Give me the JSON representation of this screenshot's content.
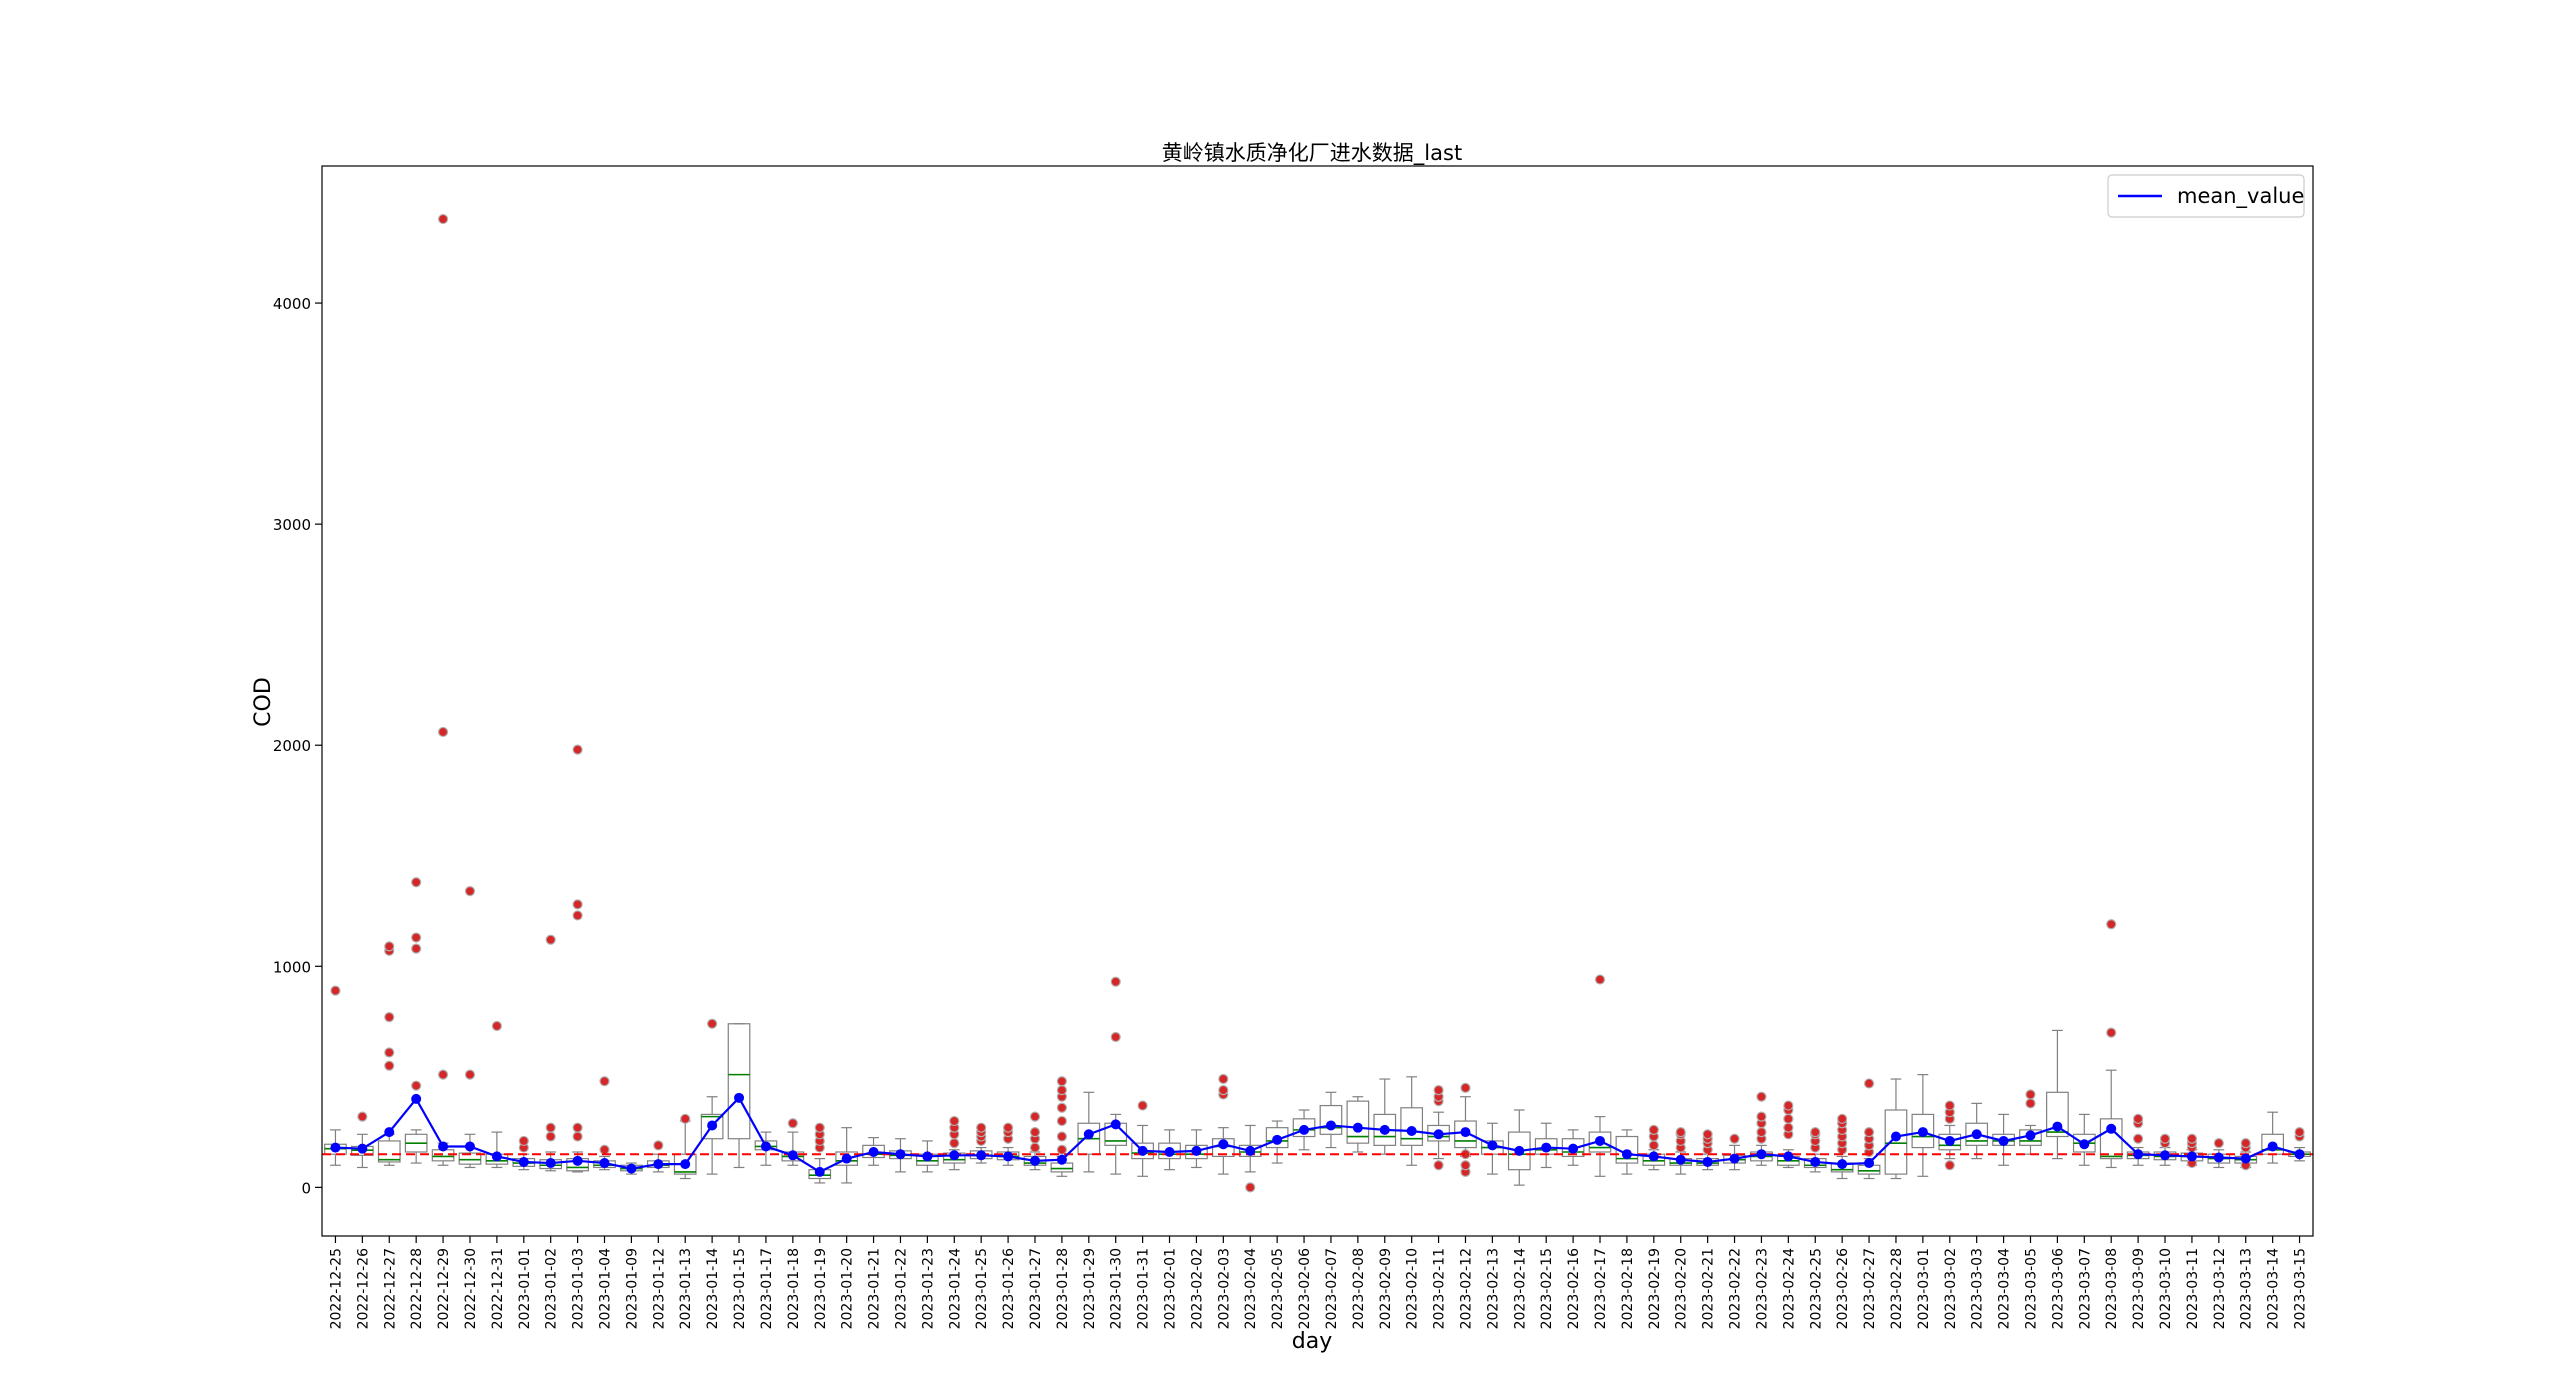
{
  "chart_data": {
    "type": "box",
    "title": "黄岭镇水质净化厂进水数据_last",
    "xlabel": "day",
    "ylabel": "COD",
    "ylim": [
      -220,
      4620
    ],
    "yticks": [
      0,
      1000,
      2000,
      3000,
      4000
    ],
    "reference_line": 150,
    "legend": {
      "placement": "top-right",
      "entries": [
        "mean_value"
      ]
    },
    "colors": {
      "mean": "#0000ff",
      "median": "#008000",
      "outlier": "#d62728",
      "box": "#808080",
      "reference": "#ff0000"
    },
    "categories": [
      "2022-12-25",
      "2022-12-26",
      "2022-12-27",
      "2022-12-28",
      "2022-12-29",
      "2022-12-30",
      "2022-12-31",
      "2023-01-01",
      "2023-01-02",
      "2023-01-03",
      "2023-01-04",
      "2023-01-09",
      "2023-01-12",
      "2023-01-13",
      "2023-01-14",
      "2023-01-15",
      "2023-01-17",
      "2023-01-18",
      "2023-01-19",
      "2023-01-20",
      "2023-01-21",
      "2023-01-22",
      "2023-01-23",
      "2023-01-24",
      "2023-01-25",
      "2023-01-26",
      "2023-01-27",
      "2023-01-28",
      "2023-01-29",
      "2023-01-30",
      "2023-01-31",
      "2023-02-01",
      "2023-02-02",
      "2023-02-03",
      "2023-02-04",
      "2023-02-05",
      "2023-02-06",
      "2023-02-07",
      "2023-02-08",
      "2023-02-09",
      "2023-02-10",
      "2023-02-11",
      "2023-02-12",
      "2023-02-13",
      "2023-02-14",
      "2023-02-15",
      "2023-02-16",
      "2023-02-17",
      "2023-02-18",
      "2023-02-19",
      "2023-02-20",
      "2023-02-21",
      "2023-02-22",
      "2023-02-23",
      "2023-02-24",
      "2023-02-25",
      "2023-02-26",
      "2023-02-27",
      "2023-02-28",
      "2023-03-01",
      "2023-03-02",
      "2023-03-03",
      "2023-03-04",
      "2023-03-05",
      "2023-03-06",
      "2023-03-07",
      "2023-03-08",
      "2023-03-09",
      "2023-03-10",
      "2023-03-11",
      "2023-03-12",
      "2023-03-13",
      "2023-03-14",
      "2023-03-15"
    ],
    "boxes": [
      {
        "q1": 150,
        "med": 175,
        "q3": 195,
        "wlo": 100,
        "whi": 260,
        "out": [
          890
        ]
      },
      {
        "q1": 145,
        "med": 168,
        "q3": 185,
        "wlo": 90,
        "whi": 240,
        "out": [
          320
        ]
      },
      {
        "q1": 115,
        "med": 125,
        "q3": 210,
        "wlo": 100,
        "whi": 240,
        "out": [
          550,
          610,
          770,
          1070,
          1090
        ]
      },
      {
        "q1": 160,
        "med": 200,
        "q3": 240,
        "wlo": 110,
        "whi": 260,
        "out": [
          460,
          1080,
          1130,
          1380
        ]
      },
      {
        "q1": 120,
        "med": 140,
        "q3": 170,
        "wlo": 100,
        "whi": 200,
        "out": [
          510,
          2060,
          4380
        ]
      },
      {
        "q1": 105,
        "med": 125,
        "q3": 155,
        "wlo": 90,
        "whi": 240,
        "out": [
          510,
          1340
        ]
      },
      {
        "q1": 105,
        "med": 120,
        "q3": 150,
        "wlo": 90,
        "whi": 250,
        "out": [
          730
        ]
      },
      {
        "q1": 95,
        "med": 110,
        "q3": 130,
        "wlo": 80,
        "whi": 150,
        "out": [
          180,
          210
        ]
      },
      {
        "q1": 85,
        "med": 100,
        "q3": 125,
        "wlo": 75,
        "whi": 160,
        "out": [
          230,
          270,
          1120
        ]
      },
      {
        "q1": 75,
        "med": 90,
        "q3": 130,
        "wlo": 70,
        "whi": 160,
        "out": [
          230,
          270,
          1230,
          1280,
          1980
        ]
      },
      {
        "q1": 90,
        "med": 100,
        "q3": 120,
        "wlo": 80,
        "whi": 140,
        "out": [
          170,
          480
        ]
      },
      {
        "q1": 75,
        "med": 85,
        "q3": 100,
        "wlo": 60,
        "whi": 110,
        "out": []
      },
      {
        "q1": 90,
        "med": 100,
        "q3": 120,
        "wlo": 70,
        "whi": 150,
        "out": [
          190
        ]
      },
      {
        "q1": 60,
        "med": 70,
        "q3": 150,
        "wlo": 40,
        "whi": 300,
        "out": [
          310
        ]
      },
      {
        "q1": 220,
        "med": 320,
        "q3": 330,
        "wlo": 60,
        "whi": 410,
        "out": [
          740
        ]
      },
      {
        "q1": 220,
        "med": 510,
        "q3": 740,
        "wlo": 90,
        "whi": 740,
        "out": []
      },
      {
        "q1": 170,
        "med": 185,
        "q3": 210,
        "wlo": 100,
        "whi": 250,
        "out": []
      },
      {
        "q1": 120,
        "med": 140,
        "q3": 160,
        "wlo": 100,
        "whi": 250,
        "out": [
          290
        ]
      },
      {
        "q1": 40,
        "med": 55,
        "q3": 80,
        "wlo": 20,
        "whi": 130,
        "out": [
          180,
          210,
          240,
          270
        ]
      },
      {
        "q1": 100,
        "med": 120,
        "q3": 160,
        "wlo": 20,
        "whi": 270,
        "out": []
      },
      {
        "q1": 135,
        "med": 150,
        "q3": 190,
        "wlo": 100,
        "whi": 225,
        "out": []
      },
      {
        "q1": 130,
        "med": 145,
        "q3": 165,
        "wlo": 70,
        "whi": 220,
        "out": []
      },
      {
        "q1": 100,
        "med": 120,
        "q3": 150,
        "wlo": 70,
        "whi": 210,
        "out": []
      },
      {
        "q1": 110,
        "med": 125,
        "q3": 155,
        "wlo": 80,
        "whi": 170,
        "out": [
          200,
          240,
          270,
          300
        ]
      },
      {
        "q1": 130,
        "med": 145,
        "q3": 165,
        "wlo": 110,
        "whi": 180,
        "out": [
          210,
          230,
          250,
          270
        ]
      },
      {
        "q1": 125,
        "med": 140,
        "q3": 160,
        "wlo": 100,
        "whi": 180,
        "out": [
          220,
          250,
          270
        ]
      },
      {
        "q1": 100,
        "med": 110,
        "q3": 140,
        "wlo": 80,
        "whi": 160,
        "out": [
          180,
          220,
          250,
          320
        ]
      },
      {
        "q1": 70,
        "med": 85,
        "q3": 110,
        "wlo": 50,
        "whi": 140,
        "out": [
          170,
          230,
          300,
          360,
          410,
          440,
          480
        ]
      },
      {
        "q1": 150,
        "med": 220,
        "q3": 290,
        "wlo": 70,
        "whi": 430,
        "out": []
      },
      {
        "q1": 190,
        "med": 210,
        "q3": 290,
        "wlo": 60,
        "whi": 330,
        "out": [
          680,
          930
        ]
      },
      {
        "q1": 130,
        "med": 155,
        "q3": 200,
        "wlo": 50,
        "whi": 280,
        "out": [
          370
        ]
      },
      {
        "q1": 130,
        "med": 150,
        "q3": 200,
        "wlo": 80,
        "whi": 260,
        "out": []
      },
      {
        "q1": 130,
        "med": 150,
        "q3": 190,
        "wlo": 90,
        "whi": 260,
        "out": []
      },
      {
        "q1": 140,
        "med": 185,
        "q3": 220,
        "wlo": 60,
        "whi": 270,
        "out": [
          420,
          440,
          490
        ]
      },
      {
        "q1": 140,
        "med": 160,
        "q3": 190,
        "wlo": 70,
        "whi": 280,
        "out": [
          0
        ]
      },
      {
        "q1": 180,
        "med": 210,
        "q3": 270,
        "wlo": 110,
        "whi": 300,
        "out": []
      },
      {
        "q1": 230,
        "med": 260,
        "q3": 310,
        "wlo": 170,
        "whi": 350,
        "out": []
      },
      {
        "q1": 240,
        "med": 270,
        "q3": 370,
        "wlo": 180,
        "whi": 430,
        "out": []
      },
      {
        "q1": 200,
        "med": 230,
        "q3": 390,
        "wlo": 160,
        "whi": 410,
        "out": []
      },
      {
        "q1": 190,
        "med": 230,
        "q3": 330,
        "wlo": 150,
        "whi": 490,
        "out": []
      },
      {
        "q1": 190,
        "med": 220,
        "q3": 360,
        "wlo": 100,
        "whi": 500,
        "out": []
      },
      {
        "q1": 210,
        "med": 230,
        "q3": 280,
        "wlo": 130,
        "whi": 340,
        "out": [
          100,
          390,
          410,
          440
        ]
      },
      {
        "q1": 180,
        "med": 210,
        "q3": 300,
        "wlo": 140,
        "whi": 410,
        "out": [
          70,
          100,
          150,
          450
        ]
      },
      {
        "q1": 150,
        "med": 180,
        "q3": 210,
        "wlo": 60,
        "whi": 290,
        "out": []
      },
      {
        "q1": 80,
        "med": 150,
        "q3": 250,
        "wlo": 10,
        "whi": 350,
        "out": []
      },
      {
        "q1": 150,
        "med": 170,
        "q3": 220,
        "wlo": 90,
        "whi": 290,
        "out": []
      },
      {
        "q1": 140,
        "med": 160,
        "q3": 220,
        "wlo": 100,
        "whi": 260,
        "out": []
      },
      {
        "q1": 160,
        "med": 180,
        "q3": 250,
        "wlo": 50,
        "whi": 320,
        "out": [
          940
        ]
      },
      {
        "q1": 110,
        "med": 130,
        "q3": 230,
        "wlo": 60,
        "whi": 260,
        "out": []
      },
      {
        "q1": 100,
        "med": 120,
        "q3": 150,
        "wlo": 80,
        "whi": 170,
        "out": [
          190,
          230,
          260
        ]
      },
      {
        "q1": 100,
        "med": 110,
        "q3": 130,
        "wlo": 60,
        "whi": 160,
        "out": [
          180,
          210,
          240,
          250
        ]
      },
      {
        "q1": 100,
        "med": 110,
        "q3": 130,
        "wlo": 80,
        "whi": 150,
        "out": [
          170,
          200,
          220,
          240
        ]
      },
      {
        "q1": 110,
        "med": 125,
        "q3": 145,
        "wlo": 80,
        "whi": 190,
        "out": [
          220
        ]
      },
      {
        "q1": 120,
        "med": 140,
        "q3": 160,
        "wlo": 100,
        "whi": 190,
        "out": [
          220,
          250,
          290,
          320,
          410
        ]
      },
      {
        "q1": 100,
        "med": 120,
        "q3": 140,
        "wlo": 90,
        "whi": 170,
        "out": [
          240,
          270,
          310,
          350,
          370
        ]
      },
      {
        "q1": 90,
        "med": 100,
        "q3": 130,
        "wlo": 70,
        "whi": 150,
        "out": [
          180,
          210,
          240,
          250
        ]
      },
      {
        "q1": 70,
        "med": 80,
        "q3": 110,
        "wlo": 40,
        "whi": 140,
        "out": [
          170,
          200,
          230,
          260,
          290,
          310
        ]
      },
      {
        "q1": 60,
        "med": 75,
        "q3": 100,
        "wlo": 40,
        "whi": 130,
        "out": [
          160,
          190,
          220,
          250,
          470
        ]
      },
      {
        "q1": 60,
        "med": 200,
        "q3": 350,
        "wlo": 40,
        "whi": 490,
        "out": []
      },
      {
        "q1": 180,
        "med": 230,
        "q3": 330,
        "wlo": 50,
        "whi": 510,
        "out": []
      },
      {
        "q1": 170,
        "med": 190,
        "q3": 240,
        "wlo": 130,
        "whi": 280,
        "out": [
          100,
          310,
          340,
          370
        ]
      },
      {
        "q1": 190,
        "med": 210,
        "q3": 290,
        "wlo": 130,
        "whi": 380,
        "out": []
      },
      {
        "q1": 190,
        "med": 210,
        "q3": 240,
        "wlo": 100,
        "whi": 330,
        "out": []
      },
      {
        "q1": 190,
        "med": 210,
        "q3": 260,
        "wlo": 150,
        "whi": 280,
        "out": [
          380,
          420
        ]
      },
      {
        "q1": 230,
        "med": 250,
        "q3": 430,
        "wlo": 130,
        "whi": 710,
        "out": []
      },
      {
        "q1": 160,
        "med": 200,
        "q3": 240,
        "wlo": 100,
        "whi": 330,
        "out": []
      },
      {
        "q1": 130,
        "med": 140,
        "q3": 310,
        "wlo": 90,
        "whi": 530,
        "out": [
          700,
          1190
        ]
      },
      {
        "q1": 130,
        "med": 145,
        "q3": 160,
        "wlo": 100,
        "whi": 180,
        "out": [
          220,
          290,
          310
        ]
      },
      {
        "q1": 125,
        "med": 140,
        "q3": 160,
        "wlo": 100,
        "whi": 180,
        "out": [
          200,
          220
        ]
      },
      {
        "q1": 120,
        "med": 140,
        "q3": 155,
        "wlo": 100,
        "whi": 170,
        "out": [
          110,
          180,
          200,
          220
        ]
      },
      {
        "q1": 110,
        "med": 130,
        "q3": 150,
        "wlo": 90,
        "whi": 170,
        "out": [
          200
        ]
      },
      {
        "q1": 110,
        "med": 125,
        "q3": 140,
        "wlo": 90,
        "whi": 160,
        "out": [
          100,
          180,
          200
        ]
      },
      {
        "q1": 150,
        "med": 170,
        "q3": 240,
        "wlo": 110,
        "whi": 340,
        "out": []
      },
      {
        "q1": 140,
        "med": 150,
        "q3": 160,
        "wlo": 120,
        "whi": 180,
        "out": [
          230,
          250
        ]
      }
    ],
    "series": [
      {
        "name": "mean_value",
        "values": [
          180,
          175,
          250,
          400,
          185,
          185,
          140,
          115,
          110,
          120,
          110,
          85,
          105,
          105,
          280,
          405,
          185,
          145,
          70,
          130,
          160,
          150,
          140,
          145,
          145,
          140,
          120,
          125,
          240,
          285,
          165,
          160,
          165,
          195,
          165,
          215,
          260,
          280,
          270,
          260,
          255,
          240,
          250,
          190,
          165,
          180,
          175,
          210,
          150,
          140,
          125,
          115,
          130,
          150,
          140,
          115,
          105,
          110,
          230,
          250,
          210,
          240,
          210,
          235,
          275,
          195,
          265,
          150,
          145,
          140,
          135,
          130,
          185,
          150
        ]
      }
    ]
  }
}
